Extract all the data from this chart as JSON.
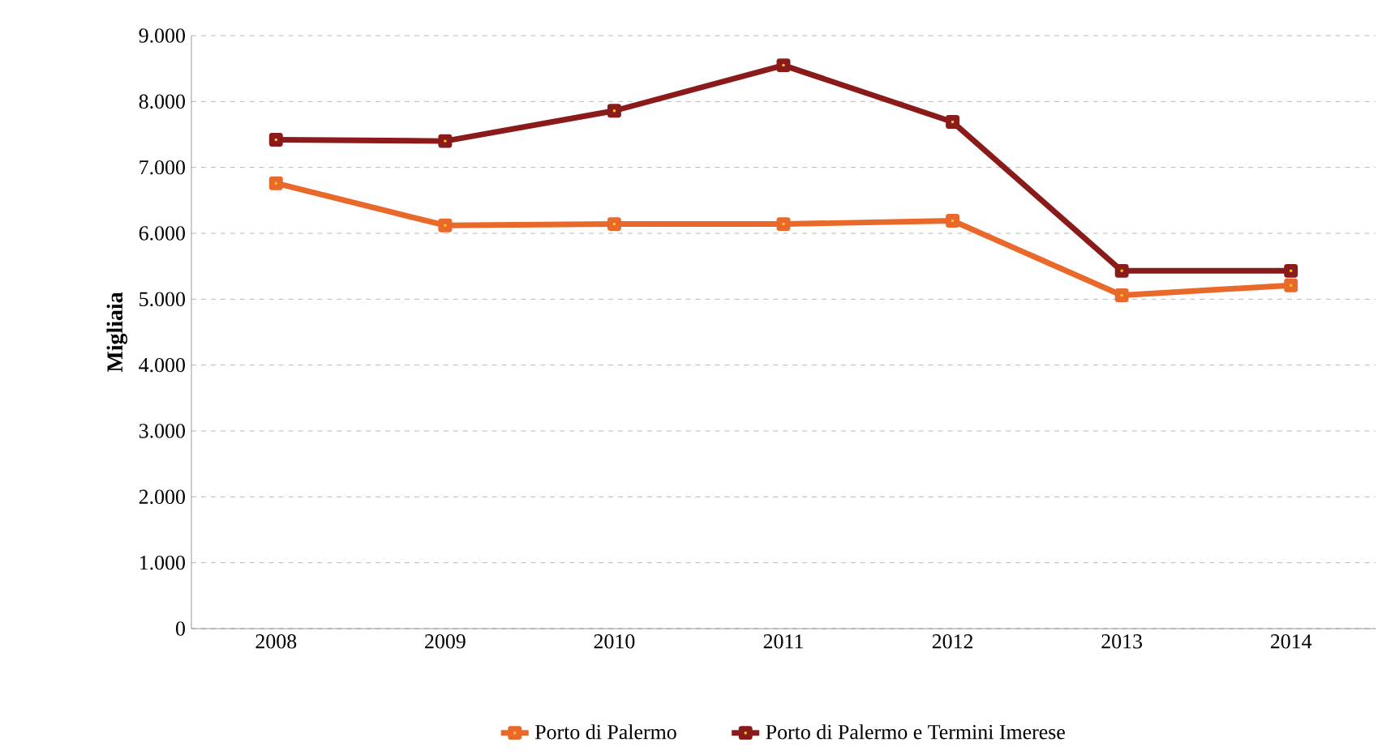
{
  "chart_data": {
    "type": "line",
    "ylabel": "Migliaia",
    "categories": [
      "2008",
      "2009",
      "2010",
      "2011",
      "2012",
      "2013",
      "2014"
    ],
    "series": [
      {
        "name": "Porto di Palermo",
        "color": "#e8692a",
        "values": [
          6760,
          6120,
          6140,
          6140,
          6190,
          5060,
          5210
        ]
      },
      {
        "name": "Porto di Palermo e Termini Imerese",
        "color": "#8b1a1a",
        "values": [
          7420,
          7400,
          7860,
          8550,
          7690,
          5430,
          5430
        ]
      }
    ],
    "ylim": [
      0,
      9000
    ],
    "yticks": [
      {
        "value": 0,
        "label": "0"
      },
      {
        "value": 1000,
        "label": "1.000"
      },
      {
        "value": 2000,
        "label": "2.000"
      },
      {
        "value": 3000,
        "label": "3.000"
      },
      {
        "value": 4000,
        "label": "4.000"
      },
      {
        "value": 5000,
        "label": "5.000"
      },
      {
        "value": 6000,
        "label": "6.000"
      },
      {
        "value": 7000,
        "label": "7.000"
      },
      {
        "value": 8000,
        "label": "8.000"
      },
      {
        "value": 9000,
        "label": "9.000"
      }
    ],
    "grid": "y",
    "legend": "bottom",
    "marker": "square",
    "line_style": "solid"
  }
}
